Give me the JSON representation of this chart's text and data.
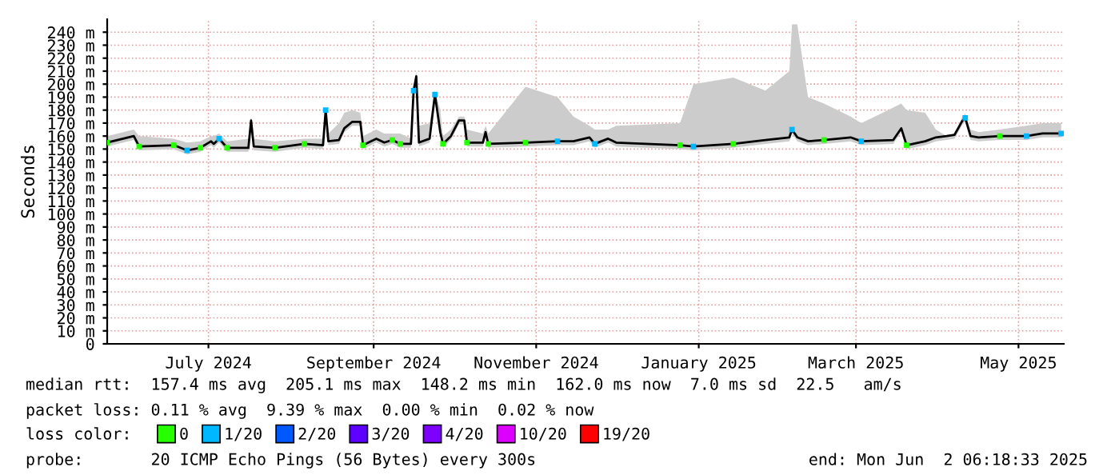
{
  "chart_data": {
    "type": "line",
    "ylabel": "Seconds",
    "x": [
      "2024-05-24",
      "2024-06-03",
      "2024-06-05",
      "2024-06-18",
      "2024-06-23",
      "2024-06-28",
      "2024-07-02",
      "2024-07-03",
      "2024-07-05",
      "2024-07-08",
      "2024-07-16",
      "2024-07-17",
      "2024-07-18",
      "2024-07-26",
      "2024-08-06",
      "2024-08-13",
      "2024-08-14",
      "2024-08-15",
      "2024-08-19",
      "2024-08-21",
      "2024-08-24",
      "2024-08-27",
      "2024-08-28",
      "2024-09-02",
      "2024-09-05",
      "2024-09-08",
      "2024-09-11",
      "2024-09-15",
      "2024-09-16",
      "2024-09-17",
      "2024-09-18",
      "2024-09-22",
      "2024-09-24",
      "2024-09-26",
      "2024-09-27",
      "2024-09-30",
      "2024-10-03",
      "2024-10-05",
      "2024-10-06",
      "2024-10-12",
      "2024-10-13",
      "2024-10-14",
      "2024-10-28",
      "2024-11-09",
      "2024-11-15",
      "2024-11-21",
      "2024-11-23",
      "2024-11-28",
      "2024-12-01",
      "2024-12-25",
      "2024-12-30",
      "2025-01-14",
      "2025-01-26",
      "2025-02-04",
      "2025-02-05",
      "2025-02-07",
      "2025-02-11",
      "2025-02-17",
      "2025-02-27",
      "2025-03-03",
      "2025-03-15",
      "2025-03-18",
      "2025-03-20",
      "2025-03-27",
      "2025-03-31",
      "2025-04-04",
      "2025-04-07",
      "2025-04-10",
      "2025-04-11",
      "2025-04-13",
      "2025-04-16",
      "2025-04-24",
      "2025-05-04",
      "2025-05-10",
      "2025-05-17"
    ],
    "series": [
      {
        "color": "#000000",
        "marker": "none",
        "values": [
          155,
          160,
          152,
          153,
          149,
          151,
          156,
          154,
          158,
          151,
          151,
          172,
          152,
          151,
          154,
          153,
          180,
          156,
          157,
          166,
          171,
          171,
          153,
          158,
          155,
          157,
          154,
          154,
          195,
          206,
          155,
          158,
          192,
          163,
          154,
          160,
          172,
          172,
          155,
          155,
          163,
          154,
          155,
          156,
          156,
          159,
          154,
          158,
          155,
          153,
          152,
          154,
          157,
          159,
          165,
          159,
          156,
          157,
          159,
          156,
          157,
          166,
          153,
          156,
          159,
          160,
          161,
          172,
          174,
          160,
          159,
          160,
          160,
          162,
          162
        ],
        "lower": [
          152,
          157,
          149,
          150,
          146,
          148,
          153,
          151,
          155,
          148,
          148,
          169,
          149,
          148,
          151,
          150,
          177,
          153,
          154,
          163,
          168,
          168,
          150,
          155,
          152,
          154,
          151,
          151,
          192,
          203,
          152,
          155,
          189,
          160,
          151,
          157,
          169,
          169,
          152,
          152,
          160,
          151,
          152,
          153,
          153,
          156,
          151,
          155,
          152,
          150,
          149,
          151,
          154,
          156,
          162,
          156,
          153,
          154,
          156,
          153,
          154,
          163,
          150,
          153,
          156,
          157,
          158,
          169,
          171,
          157,
          156,
          157,
          157,
          159,
          159
        ],
        "upper": [
          160,
          165,
          160,
          158,
          155,
          156,
          160,
          160,
          162,
          156,
          158,
          175,
          158,
          156,
          158,
          158,
          182,
          162,
          170,
          178,
          180,
          178,
          160,
          165,
          162,
          162,
          162,
          158,
          198,
          210,
          168,
          170,
          195,
          180,
          160,
          165,
          175,
          175,
          165,
          162,
          168,
          162,
          198,
          190,
          175,
          168,
          165,
          165,
          168,
          170,
          200,
          205,
          195,
          210,
          246,
          246,
          190,
          185,
          175,
          170,
          182,
          185,
          180,
          178,
          165,
          160,
          162,
          175,
          177,
          165,
          163,
          165,
          168,
          170,
          170
        ]
      },
      {
        "type": "scatter",
        "name": "0",
        "color": "#26ff00",
        "marker": "square",
        "x": [
          "2024-05-24",
          "2024-06-05",
          "2024-06-18",
          "2024-06-28",
          "2024-07-08",
          "2024-07-26",
          "2024-08-06",
          "2024-08-28",
          "2024-09-08",
          "2024-09-11",
          "2024-09-27",
          "2024-10-06",
          "2024-10-14",
          "2024-10-28",
          "2024-12-25",
          "2025-01-14",
          "2025-02-17",
          "2025-03-20",
          "2025-04-24"
        ],
        "values": [
          155,
          152,
          153,
          151,
          151,
          151,
          154,
          153,
          157,
          154,
          154,
          155,
          154,
          155,
          153,
          154,
          157,
          153,
          160
        ]
      },
      {
        "type": "scatter",
        "name": "1/20",
        "color": "#00b8ff",
        "marker": "square",
        "x": [
          "2024-06-23",
          "2024-07-05",
          "2024-08-14",
          "2024-09-16",
          "2024-09-24",
          "2024-11-09",
          "2024-11-23",
          "2024-12-30",
          "2025-02-05",
          "2025-03-03",
          "2025-04-11",
          "2025-05-04",
          "2025-05-17"
        ],
        "values": [
          149,
          158,
          180,
          195,
          192,
          156,
          154,
          152,
          165,
          156,
          174,
          160,
          162
        ]
      },
      {
        "type": "scatter",
        "name": "2/20",
        "color": "#0059ff",
        "marker": "square",
        "values": [
          null,
          null,
          null,
          null,
          null,
          null,
          null,
          null,
          null,
          null,
          null,
          null,
          null,
          null,
          null,
          null,
          null,
          null,
          null,
          null,
          null,
          null,
          null,
          null,
          null,
          null,
          null,
          null,
          null,
          null,
          null,
          null,
          null,
          null,
          null,
          null,
          null,
          null,
          null,
          null,
          null,
          null,
          null,
          null,
          null,
          null,
          null,
          null,
          null,
          null,
          null,
          null,
          null,
          null,
          null,
          null,
          null,
          null,
          null,
          null,
          null,
          null,
          null,
          null,
          null,
          null,
          null,
          null,
          null,
          null,
          null,
          null,
          null,
          null,
          null
        ]
      },
      {
        "type": "scatter",
        "name": "3/20",
        "color": "#5e00ff",
        "marker": "square",
        "values": [
          null,
          null,
          null,
          null,
          null,
          null,
          null,
          null,
          null,
          null,
          null,
          null,
          null,
          null,
          null,
          null,
          null,
          null,
          null,
          null,
          null,
          null,
          null,
          null,
          null,
          null,
          null,
          null,
          null,
          null,
          null,
          null,
          null,
          null,
          null,
          null,
          null,
          null,
          null,
          null,
          null,
          null,
          null,
          null,
          null,
          null,
          null,
          null,
          null,
          null,
          null,
          null,
          null,
          null,
          null,
          null,
          null,
          null,
          null,
          null,
          null,
          null,
          null,
          null,
          null,
          null,
          null,
          null,
          null,
          null,
          null,
          null,
          null,
          null,
          null
        ]
      },
      {
        "type": "scatter",
        "name": "4/20",
        "color": "#7e00ff",
        "marker": "square",
        "values": [
          null,
          null,
          null,
          null,
          null,
          null,
          null,
          null,
          null,
          null,
          null,
          null,
          null,
          null,
          null,
          null,
          null,
          null,
          null,
          null,
          null,
          null,
          null,
          null,
          null,
          null,
          null,
          null,
          null,
          null,
          null,
          null,
          null,
          null,
          null,
          null,
          null,
          null,
          null,
          null,
          null,
          null,
          null,
          null,
          null,
          null,
          null,
          null,
          null,
          null,
          null,
          null,
          null,
          null,
          null,
          null,
          null,
          null,
          null,
          null,
          null,
          null,
          null,
          null,
          null,
          null,
          null,
          null,
          null,
          null,
          null,
          null,
          null,
          null,
          null
        ]
      },
      {
        "type": "scatter",
        "name": "10/20",
        "color": "#dd00ff",
        "marker": "square",
        "values": [
          null,
          null,
          null,
          null,
          null,
          null,
          null,
          null,
          null,
          null,
          null,
          null,
          null,
          null,
          null,
          null,
          null,
          null,
          null,
          null,
          null,
          null,
          null,
          null,
          null,
          null,
          null,
          null,
          null,
          null,
          null,
          null,
          null,
          null,
          null,
          null,
          null,
          null,
          null,
          null,
          null,
          null,
          null,
          null,
          null,
          null,
          null,
          null,
          null,
          null,
          null,
          null,
          null,
          null,
          null,
          null,
          null,
          null,
          null,
          null,
          null,
          null,
          null,
          null,
          null,
          null,
          null,
          null,
          null,
          null,
          null,
          null,
          null,
          null,
          null
        ]
      },
      {
        "type": "scatter",
        "name": "19/20",
        "color": "#ff0000",
        "marker": "square",
        "values": [
          null,
          null,
          null,
          null,
          null,
          null,
          null,
          null,
          null,
          null,
          null,
          null,
          null,
          null,
          null,
          null,
          null,
          null,
          null,
          null,
          null,
          null,
          null,
          null,
          null,
          null,
          null,
          null,
          null,
          null,
          null,
          null,
          null,
          null,
          null,
          null,
          null,
          null,
          null,
          null,
          null,
          null,
          null,
          null,
          null,
          null,
          null,
          null,
          null,
          null,
          null,
          null,
          null,
          null,
          null,
          null,
          null,
          null,
          null,
          null,
          null,
          null,
          null,
          null,
          null,
          null,
          null,
          null,
          null,
          null,
          null,
          null,
          null,
          null,
          null
        ]
      }
    ],
    "legend": "bottom",
    "legend_title": "loss color:",
    "grid": true,
    "xlim": [
      "2024-05-24",
      "2025-05-18"
    ],
    "xticks": [
      {
        "value": "2024-07-01",
        "label": "July 2024"
      },
      {
        "value": "2024-09-01",
        "label": "September 2024"
      },
      {
        "value": "2024-11-01",
        "label": "November 2024"
      },
      {
        "value": "2025-01-01",
        "label": "January 2025"
      },
      {
        "value": "2025-03-01",
        "label": "March 2025"
      },
      {
        "value": "2025-05-01",
        "label": "May 2025"
      }
    ],
    "ylim": [
      0,
      250
    ],
    "yticks": [
      0,
      {
        "value": 10,
        "label": "10 m"
      },
      {
        "value": 20,
        "label": "20 m"
      },
      {
        "value": 30,
        "label": "30 m"
      },
      {
        "value": 40,
        "label": "40 m"
      },
      {
        "value": 50,
        "label": "50 m"
      },
      {
        "value": 60,
        "label": "60 m"
      },
      {
        "value": 70,
        "label": "70 m"
      },
      {
        "value": 80,
        "label": "80 m"
      },
      {
        "value": 90,
        "label": "90 m"
      },
      {
        "value": 100,
        "label": "100 m"
      },
      {
        "value": 110,
        "label": "110 m"
      },
      {
        "value": 120,
        "label": "120 m"
      },
      {
        "value": 130,
        "label": "130 m"
      },
      {
        "value": 140,
        "label": "140 m"
      },
      {
        "value": 150,
        "label": "150 m"
      },
      {
        "value": 160,
        "label": "160 m"
      },
      {
        "value": 170,
        "label": "170 m"
      },
      {
        "value": 180,
        "label": "180 m"
      },
      {
        "value": 190,
        "label": "190 m"
      },
      {
        "value": 200,
        "label": "200 m"
      },
      {
        "value": 210,
        "label": "210 m"
      },
      {
        "value": 220,
        "label": "220 m"
      },
      {
        "value": 230,
        "label": "230 m"
      },
      {
        "value": 240,
        "label": "240 m"
      }
    ],
    "annotations": [
      "median rtt:  157.4 ms avg  205.1 ms max  148.2 ms min  162.0 ms now  7.0 ms sd  22.5   am/s",
      "packet loss: 0.11 % avg  9.39 % max  0.00 % min  0.02 % now",
      "probe:       20 ICMP Echo Pings (56 Bytes) every 300s",
      "end: Mon Jun  2 06:18:33 2025"
    ]
  }
}
